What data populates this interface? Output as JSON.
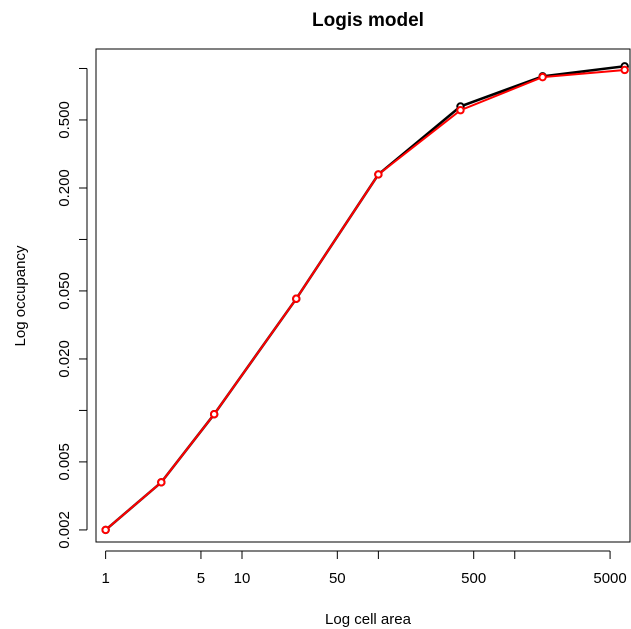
{
  "chart_data": {
    "type": "line",
    "title": "Logis model",
    "xlabel": "Log cell area",
    "ylabel": "Log occupancy",
    "x_scale": "log",
    "y_scale": "log",
    "xlim": [
      0.85,
      7000
    ],
    "ylim": [
      0.0017,
      1.3
    ],
    "x_ticks": [
      1,
      5,
      10,
      50,
      100,
      500,
      1000,
      5000
    ],
    "x_tick_labels": [
      "1",
      "5",
      "10",
      "50",
      "",
      "500",
      "",
      "5000"
    ],
    "y_ticks": [
      0.002,
      0.005,
      0.01,
      0.02,
      0.05,
      0.1,
      0.2,
      0.5,
      1
    ],
    "y_tick_labels": [
      "0.002",
      "0.005",
      "",
      "0.020",
      "0.050",
      "",
      "0.200",
      "0.500",
      ""
    ],
    "grid": false,
    "series": [
      {
        "color": "#000000",
        "marker": "circle",
        "x": [
          1,
          2.56,
          6.25,
          25,
          100,
          400,
          1600,
          6400
        ],
        "y": [
          0.002,
          0.0038,
          0.0095,
          0.045,
          0.24,
          0.6,
          0.9,
          1.03
        ]
      },
      {
        "color": "#ff0000",
        "marker": "circle",
        "x": [
          1,
          2.56,
          6.25,
          25,
          100,
          400,
          1600,
          6400
        ],
        "y": [
          0.002,
          0.0038,
          0.0095,
          0.045,
          0.24,
          0.57,
          0.89,
          0.98
        ]
      }
    ]
  }
}
